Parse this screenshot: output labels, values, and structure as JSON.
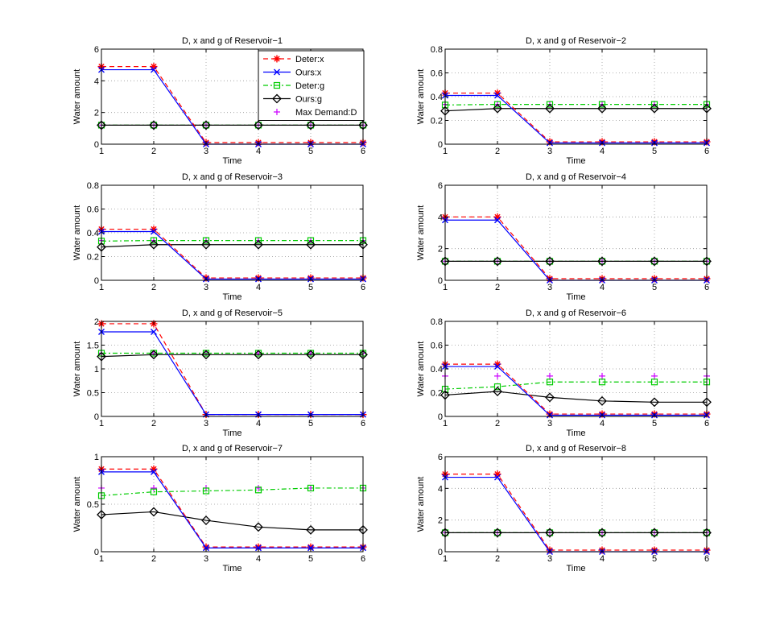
{
  "legend": {
    "entries": [
      {
        "label": "Deter:x",
        "color": "#ff0000",
        "dash": "6,4",
        "marker": "star"
      },
      {
        "label": "Ours:x",
        "color": "#0000ff",
        "dash": "",
        "marker": "x"
      },
      {
        "label": "Deter:g",
        "color": "#00cc00",
        "dash": "6,3,2,3",
        "marker": "square"
      },
      {
        "label": "Ours:g",
        "color": "#000000",
        "dash": "",
        "marker": "diamond"
      },
      {
        "label": "Max Demand:D",
        "color": "#cc00ff",
        "dash": "none",
        "marker": "plus"
      }
    ]
  },
  "chart_data": [
    {
      "type": "line",
      "title": "D, x and g of Reservoir−1",
      "xlabel": "Time",
      "ylabel": "Water amount",
      "x": [
        1,
        2,
        3,
        4,
        5,
        6
      ],
      "xticks": [
        "1",
        "2",
        "3",
        "4",
        "5",
        "6"
      ],
      "ylim": [
        0,
        6
      ],
      "yticks": [
        "0",
        "2",
        "4",
        "6"
      ],
      "grid": true,
      "legend": "top-right",
      "series": [
        {
          "name": "Deter:x",
          "values": [
            4.9,
            4.9,
            0.1,
            0.1,
            0.1,
            0.1
          ]
        },
        {
          "name": "Ours:x",
          "values": [
            4.7,
            4.7,
            0.0,
            0.0,
            0.0,
            0.0
          ]
        },
        {
          "name": "Deter:g",
          "values": [
            1.2,
            1.2,
            1.2,
            1.2,
            1.2,
            1.2
          ]
        },
        {
          "name": "Ours:g",
          "values": [
            1.2,
            1.2,
            1.2,
            1.2,
            1.2,
            1.2
          ]
        },
        {
          "name": "Max Demand:D",
          "values": [
            1.2,
            1.2,
            1.2,
            1.2,
            1.2,
            1.2
          ]
        }
      ]
    },
    {
      "type": "line",
      "title": "D, x and g of Reservoir−2",
      "xlabel": "Time",
      "ylabel": "Water amount",
      "x": [
        1,
        2,
        3,
        4,
        5,
        6
      ],
      "xticks": [
        "1",
        "2",
        "3",
        "4",
        "5",
        "6"
      ],
      "ylim": [
        0,
        0.8
      ],
      "yticks": [
        "0",
        "0.2",
        "0.4",
        "0.6",
        "0.8"
      ],
      "grid": true,
      "series": [
        {
          "name": "Deter:x",
          "values": [
            0.43,
            0.43,
            0.02,
            0.02,
            0.02,
            0.02
          ]
        },
        {
          "name": "Ours:x",
          "values": [
            0.41,
            0.41,
            0.01,
            0.01,
            0.01,
            0.01
          ]
        },
        {
          "name": "Deter:g",
          "values": [
            0.33,
            0.335,
            0.335,
            0.335,
            0.335,
            0.335
          ]
        },
        {
          "name": "Ours:g",
          "values": [
            0.28,
            0.3,
            0.3,
            0.3,
            0.3,
            0.3
          ]
        },
        {
          "name": "Max Demand:D",
          "values": [
            0.335,
            0.335,
            0.335,
            0.335,
            0.335,
            0.335
          ]
        }
      ]
    },
    {
      "type": "line",
      "title": "D, x and g of Reservoir−3",
      "xlabel": "Time",
      "ylabel": "Water amount",
      "x": [
        1,
        2,
        3,
        4,
        5,
        6
      ],
      "xticks": [
        "1",
        "2",
        "3",
        "4",
        "5",
        "6"
      ],
      "ylim": [
        0,
        0.8
      ],
      "yticks": [
        "0",
        "0.2",
        "0.4",
        "0.6",
        "0.8"
      ],
      "grid": true,
      "series": [
        {
          "name": "Deter:x",
          "values": [
            0.43,
            0.43,
            0.02,
            0.02,
            0.02,
            0.02
          ]
        },
        {
          "name": "Ours:x",
          "values": [
            0.41,
            0.41,
            0.01,
            0.01,
            0.01,
            0.01
          ]
        },
        {
          "name": "Deter:g",
          "values": [
            0.33,
            0.335,
            0.335,
            0.335,
            0.335,
            0.335
          ]
        },
        {
          "name": "Ours:g",
          "values": [
            0.28,
            0.3,
            0.3,
            0.3,
            0.3,
            0.3
          ]
        },
        {
          "name": "Max Demand:D",
          "values": [
            0.335,
            0.335,
            0.335,
            0.335,
            0.335,
            0.335
          ]
        }
      ]
    },
    {
      "type": "line",
      "title": "D, x and g of Reservoir−4",
      "xlabel": "Time",
      "ylabel": "Water amount",
      "x": [
        1,
        2,
        3,
        4,
        5,
        6
      ],
      "xticks": [
        "1",
        "2",
        "3",
        "4",
        "5",
        "6"
      ],
      "ylim": [
        0,
        6
      ],
      "yticks": [
        "0",
        "2",
        "4",
        "6"
      ],
      "grid": true,
      "series": [
        {
          "name": "Deter:x",
          "values": [
            4.0,
            4.0,
            0.1,
            0.1,
            0.1,
            0.1
          ]
        },
        {
          "name": "Ours:x",
          "values": [
            3.8,
            3.8,
            0.0,
            0.0,
            0.0,
            0.0
          ]
        },
        {
          "name": "Deter:g",
          "values": [
            1.2,
            1.2,
            1.2,
            1.2,
            1.2,
            1.2
          ]
        },
        {
          "name": "Ours:g",
          "values": [
            1.2,
            1.2,
            1.2,
            1.2,
            1.2,
            1.2
          ]
        },
        {
          "name": "Max Demand:D",
          "values": [
            1.2,
            1.2,
            1.2,
            1.2,
            1.2,
            1.2
          ]
        }
      ]
    },
    {
      "type": "line",
      "title": "D, x and g of Reservoir−5",
      "xlabel": "Time",
      "ylabel": "Water amount",
      "x": [
        1,
        2,
        3,
        4,
        5,
        6
      ],
      "xticks": [
        "1",
        "2",
        "3",
        "4",
        "5",
        "6"
      ],
      "ylim": [
        0,
        2
      ],
      "yticks": [
        "0",
        "0.5",
        "1",
        "1.5",
        "2"
      ],
      "grid": true,
      "series": [
        {
          "name": "Deter:x",
          "values": [
            1.95,
            1.95,
            0.04,
            0.04,
            0.04,
            0.04
          ]
        },
        {
          "name": "Ours:x",
          "values": [
            1.78,
            1.78,
            0.04,
            0.04,
            0.04,
            0.04
          ]
        },
        {
          "name": "Deter:g",
          "values": [
            1.33,
            1.33,
            1.33,
            1.33,
            1.33,
            1.33
          ]
        },
        {
          "name": "Ours:g",
          "values": [
            1.26,
            1.3,
            1.3,
            1.3,
            1.3,
            1.3
          ]
        },
        {
          "name": "Max Demand:D",
          "values": [
            1.33,
            1.33,
            1.33,
            1.33,
            1.33,
            1.33
          ]
        }
      ]
    },
    {
      "type": "line",
      "title": "D, x and g of Reservoir−6",
      "xlabel": "Time",
      "ylabel": "Water amount",
      "x": [
        1,
        2,
        3,
        4,
        5,
        6
      ],
      "xticks": [
        "1",
        "2",
        "3",
        "4",
        "5",
        "6"
      ],
      "ylim": [
        0,
        0.8
      ],
      "yticks": [
        "0",
        "0.2",
        "0.4",
        "0.6",
        "0.8"
      ],
      "grid": true,
      "series": [
        {
          "name": "Deter:x",
          "values": [
            0.44,
            0.44,
            0.02,
            0.02,
            0.02,
            0.02
          ]
        },
        {
          "name": "Ours:x",
          "values": [
            0.42,
            0.42,
            0.01,
            0.01,
            0.01,
            0.01
          ]
        },
        {
          "name": "Deter:g",
          "values": [
            0.23,
            0.25,
            0.29,
            0.29,
            0.29,
            0.29
          ]
        },
        {
          "name": "Ours:g",
          "values": [
            0.18,
            0.21,
            0.16,
            0.13,
            0.12,
            0.12
          ]
        },
        {
          "name": "Max Demand:D",
          "values": [
            0.34,
            0.34,
            0.34,
            0.34,
            0.34,
            0.34
          ]
        }
      ]
    },
    {
      "type": "line",
      "title": "D, x and g of Reservoir−7",
      "xlabel": "Time",
      "ylabel": "Water amount",
      "x": [
        1,
        2,
        3,
        4,
        5,
        6
      ],
      "xticks": [
        "1",
        "2",
        "3",
        "4",
        "5",
        "6"
      ],
      "ylim": [
        0,
        1
      ],
      "yticks": [
        "0",
        "0.5",
        "1"
      ],
      "grid": true,
      "series": [
        {
          "name": "Deter:x",
          "values": [
            0.87,
            0.87,
            0.05,
            0.05,
            0.05,
            0.05
          ]
        },
        {
          "name": "Ours:x",
          "values": [
            0.84,
            0.84,
            0.04,
            0.04,
            0.04,
            0.04
          ]
        },
        {
          "name": "Deter:g",
          "values": [
            0.59,
            0.63,
            0.64,
            0.65,
            0.67,
            0.67
          ]
        },
        {
          "name": "Ours:g",
          "values": [
            0.39,
            0.42,
            0.33,
            0.26,
            0.23,
            0.23
          ]
        },
        {
          "name": "Max Demand:D",
          "values": [
            0.67,
            0.67,
            0.67,
            0.67,
            0.67,
            0.67
          ]
        }
      ]
    },
    {
      "type": "line",
      "title": "D, x and g of Reservoir−8",
      "xlabel": "Time",
      "ylabel": "Water amount",
      "x": [
        1,
        2,
        3,
        4,
        5,
        6
      ],
      "xticks": [
        "1",
        "2",
        "3",
        "4",
        "5",
        "6"
      ],
      "ylim": [
        0,
        6
      ],
      "yticks": [
        "0",
        "2",
        "4",
        "6"
      ],
      "grid": true,
      "series": [
        {
          "name": "Deter:x",
          "values": [
            4.9,
            4.9,
            0.1,
            0.1,
            0.1,
            0.1
          ]
        },
        {
          "name": "Ours:x",
          "values": [
            4.7,
            4.7,
            0.0,
            0.0,
            0.0,
            0.0
          ]
        },
        {
          "name": "Deter:g",
          "values": [
            1.2,
            1.2,
            1.2,
            1.2,
            1.2,
            1.2
          ]
        },
        {
          "name": "Ours:g",
          "values": [
            1.2,
            1.2,
            1.2,
            1.2,
            1.2,
            1.2
          ]
        },
        {
          "name": "Max Demand:D",
          "values": [
            1.2,
            1.2,
            1.2,
            1.2,
            1.2,
            1.2
          ]
        }
      ]
    }
  ]
}
